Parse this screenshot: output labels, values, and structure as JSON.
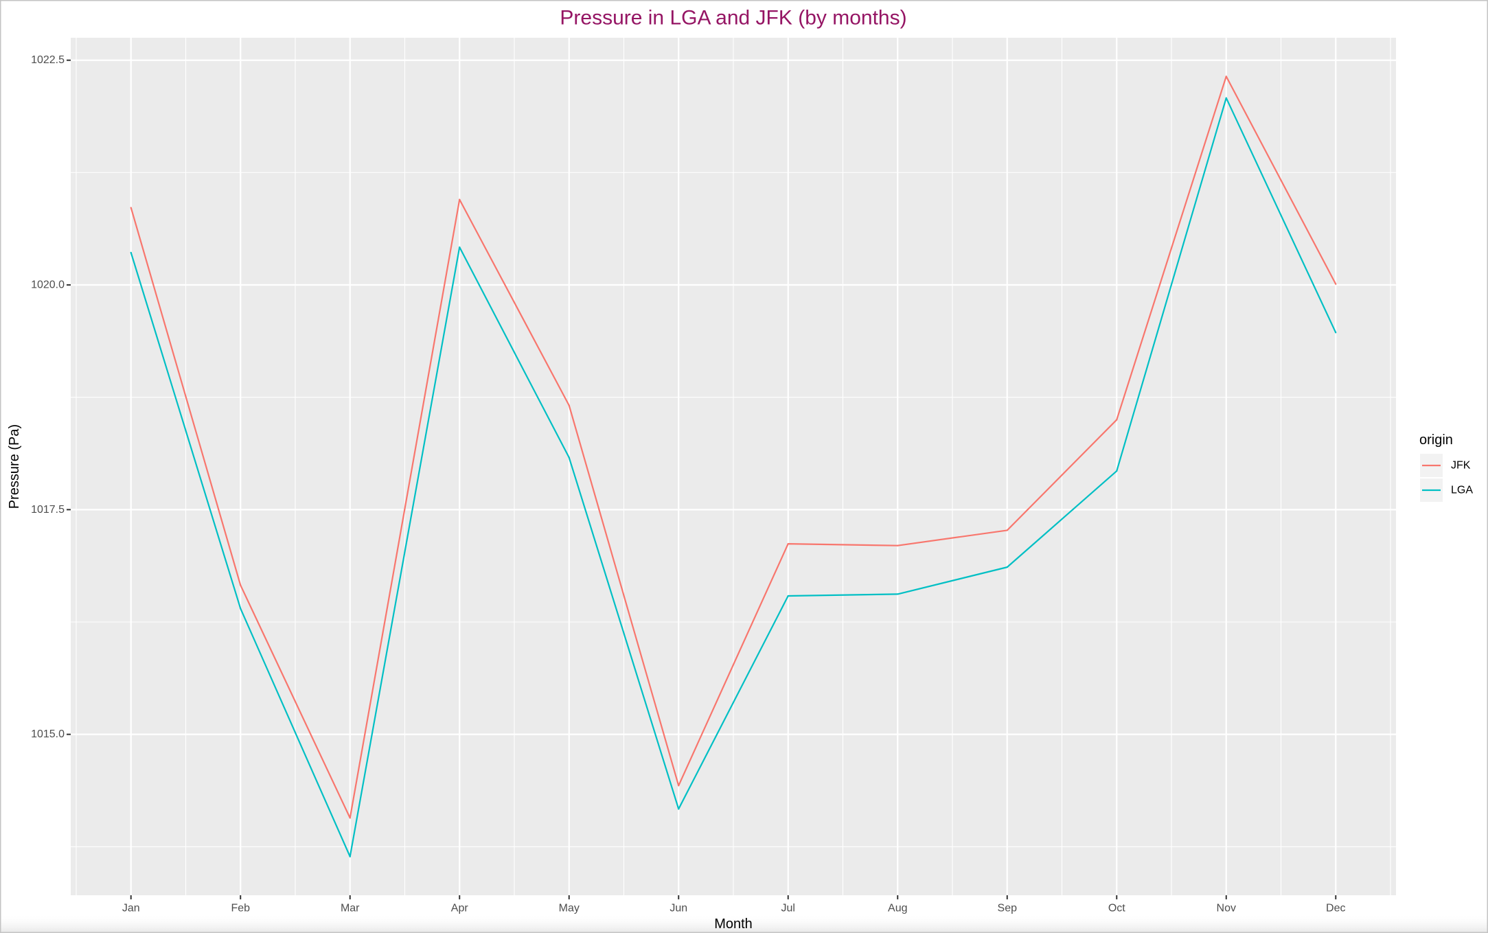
{
  "chart_data": {
    "type": "line",
    "title": "Pressure in LGA and JFK (by months)",
    "xlabel": "Month",
    "ylabel": "Pressure (Pa)",
    "categories": [
      "Jan",
      "Feb",
      "Mar",
      "Apr",
      "May",
      "Jun",
      "Jul",
      "Aug",
      "Sep",
      "Oct",
      "Nov",
      "Dec"
    ],
    "yticks": [
      "1015.0",
      "1017.5",
      "1020.0",
      "1022.5"
    ],
    "ylim": [
      1013.21,
      1022.75
    ],
    "grid": true,
    "legend": {
      "title": "origin",
      "placement": "right"
    },
    "series": [
      {
        "name": "JFK",
        "color": "#F8766D",
        "values": [
          1020.86,
          1016.66,
          1014.07,
          1020.95,
          1018.66,
          1014.43,
          1017.12,
          1017.1,
          1017.27,
          1018.5,
          1022.32,
          1020.01
        ]
      },
      {
        "name": "LGA",
        "color": "#00BFC4",
        "values": [
          1020.36,
          1016.4,
          1013.64,
          1020.42,
          1018.08,
          1014.17,
          1016.54,
          1016.56,
          1016.86,
          1017.93,
          1022.08,
          1019.47
        ]
      }
    ]
  },
  "colors": {
    "title": "#951564",
    "panel_background": "#EBEBEB",
    "gridline": "#FFFFFF",
    "axis_text": "#4D4D4D",
    "legend_key_background": "#F2F2F2"
  }
}
